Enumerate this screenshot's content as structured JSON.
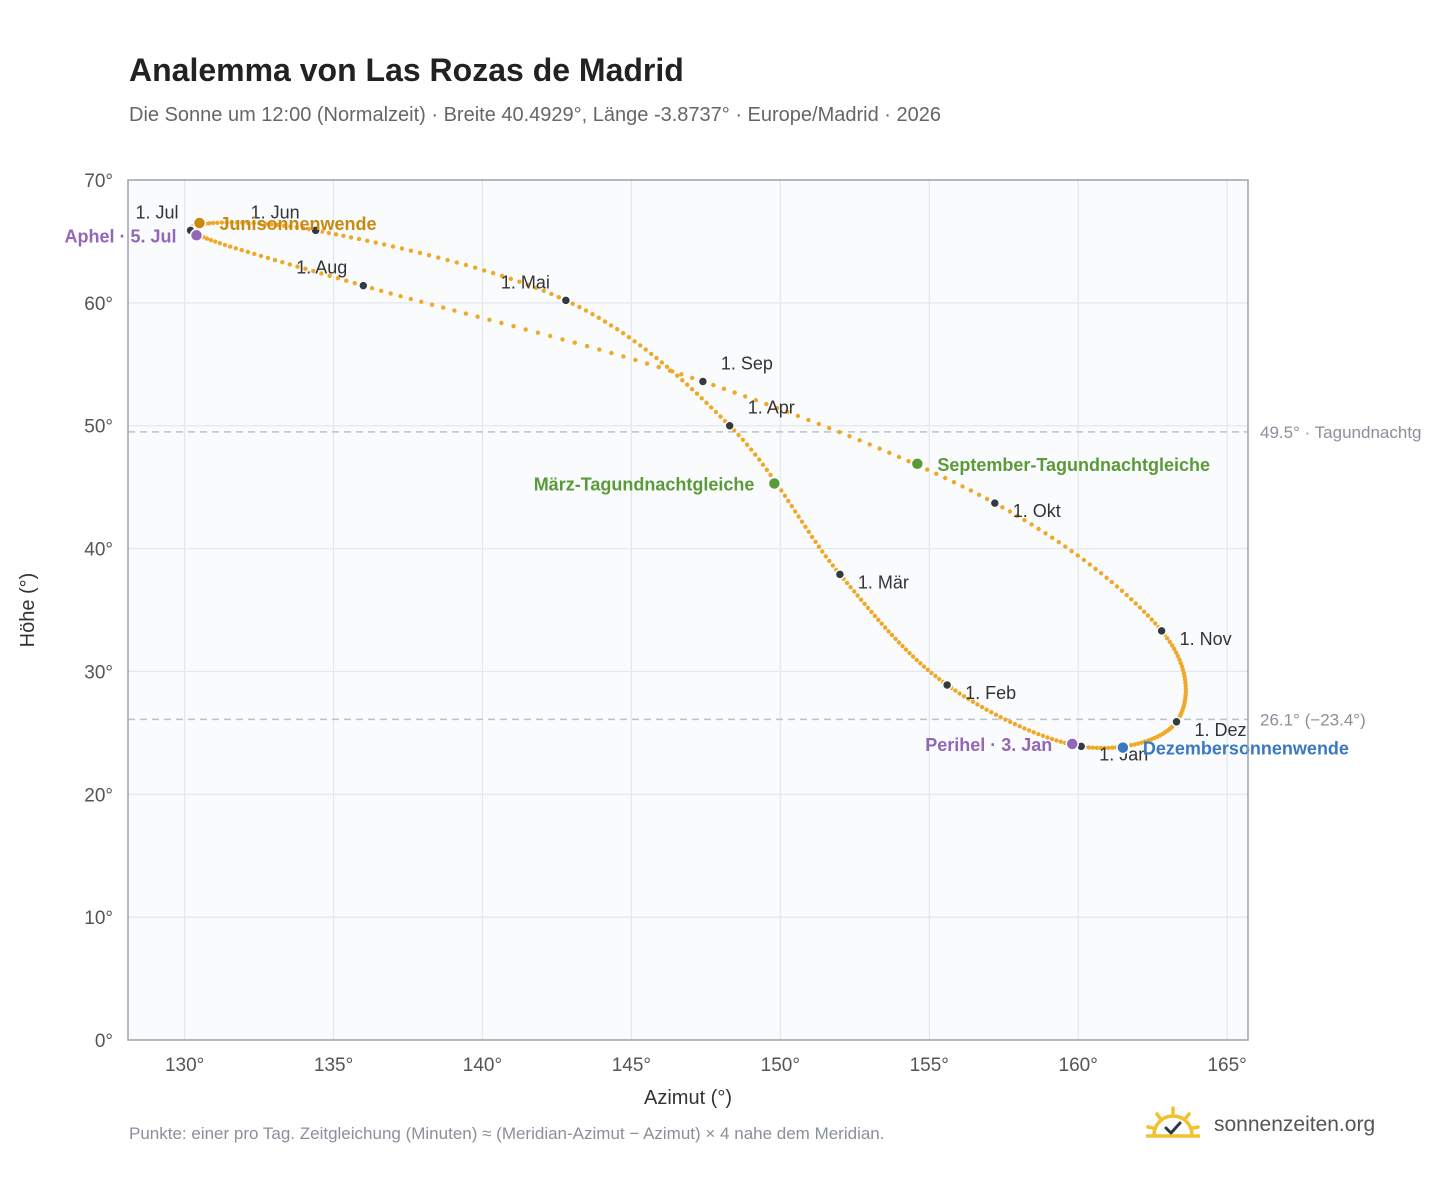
{
  "header": {
    "title": "Analemma von Las Rozas de Madrid",
    "subtitle": "Die Sonne um 12:00 (Normalzeit) · Breite 40.4929°, Länge -3.8737° · Europe/Madrid · 2026"
  },
  "footer": {
    "note": "Punkte: einer pro Tag. Zeitgleichung (Minuten) ≈ (Meridian-Azimut − Azimut) × 4 nahe dem Meridian.",
    "brand": "sonnenzeiten.org"
  },
  "colors": {
    "curve": "#f0a828",
    "month_dot": "#333a40",
    "solstice_june": "#c98a10",
    "solstice_december": "#3a78c0",
    "equinox": "#5a9a38",
    "apsis": "#9366b8",
    "plot_bg": "#f9fbfd",
    "grid": "#e3e8ee",
    "frame": "#9aa4ae",
    "reference": "#b9c3cc"
  },
  "chart_data": {
    "type": "scatter",
    "title": "Analemma von Las Rozas de Madrid",
    "xlabel": "Azimut (°)",
    "ylabel": "Höhe (°)",
    "xlim": [
      128.1,
      165.7
    ],
    "ylim": [
      0,
      70
    ],
    "xticks": [
      130,
      135,
      140,
      145,
      150,
      155,
      160,
      165
    ],
    "yticks": [
      0,
      10,
      20,
      30,
      40,
      50,
      60,
      70
    ],
    "xtick_labels": [
      "130°",
      "135°",
      "140°",
      "145°",
      "150°",
      "155°",
      "160°",
      "165°"
    ],
    "ytick_labels": [
      "0°",
      "10°",
      "20°",
      "30°",
      "40°",
      "50°",
      "60°",
      "70°"
    ],
    "grid": true,
    "month_points": [
      {
        "label": "1. Jan",
        "x": 160.1,
        "y": 23.9
      },
      {
        "label": "1. Feb",
        "x": 155.6,
        "y": 28.9
      },
      {
        "label": "1. Mär",
        "x": 152.0,
        "y": 37.9
      },
      {
        "label": "1. Apr",
        "x": 148.3,
        "y": 50.0
      },
      {
        "label": "1. Mai",
        "x": 142.8,
        "y": 60.2
      },
      {
        "label": "1. Jun",
        "x": 134.4,
        "y": 65.9
      },
      {
        "label": "1. Jul",
        "x": 130.2,
        "y": 65.9
      },
      {
        "label": "1. Aug",
        "x": 136.0,
        "y": 61.4
      },
      {
        "label": "1. Sep",
        "x": 147.4,
        "y": 53.6
      },
      {
        "label": "1. Okt",
        "x": 157.2,
        "y": 43.7
      },
      {
        "label": "1. Nov",
        "x": 162.8,
        "y": 33.3
      },
      {
        "label": "1. Dez",
        "x": 163.3,
        "y": 25.9
      }
    ],
    "events": [
      {
        "label": "Junisonnenwende",
        "x": 130.5,
        "y": 66.5,
        "kind": "solstice_june"
      },
      {
        "label": "Dezembersonnenwende",
        "x": 161.5,
        "y": 23.8,
        "kind": "solstice_december"
      },
      {
        "label": "März-Tagundnachtgleiche",
        "x": 149.8,
        "y": 45.3,
        "kind": "equinox"
      },
      {
        "label": "September-Tagundnachtgleiche",
        "x": 154.6,
        "y": 46.9,
        "kind": "equinox"
      },
      {
        "label": "Aphel · 5. Jul",
        "x": 130.4,
        "y": 65.5,
        "kind": "apsis"
      },
      {
        "label": "Perihel · 3. Jan",
        "x": 159.8,
        "y": 24.1,
        "kind": "apsis"
      }
    ],
    "reference_lines": [
      {
        "y": 49.5,
        "label": "49.5° · Tagundnachtg"
      },
      {
        "y": 26.1,
        "label": "26.1° (−23.4°)"
      }
    ]
  }
}
